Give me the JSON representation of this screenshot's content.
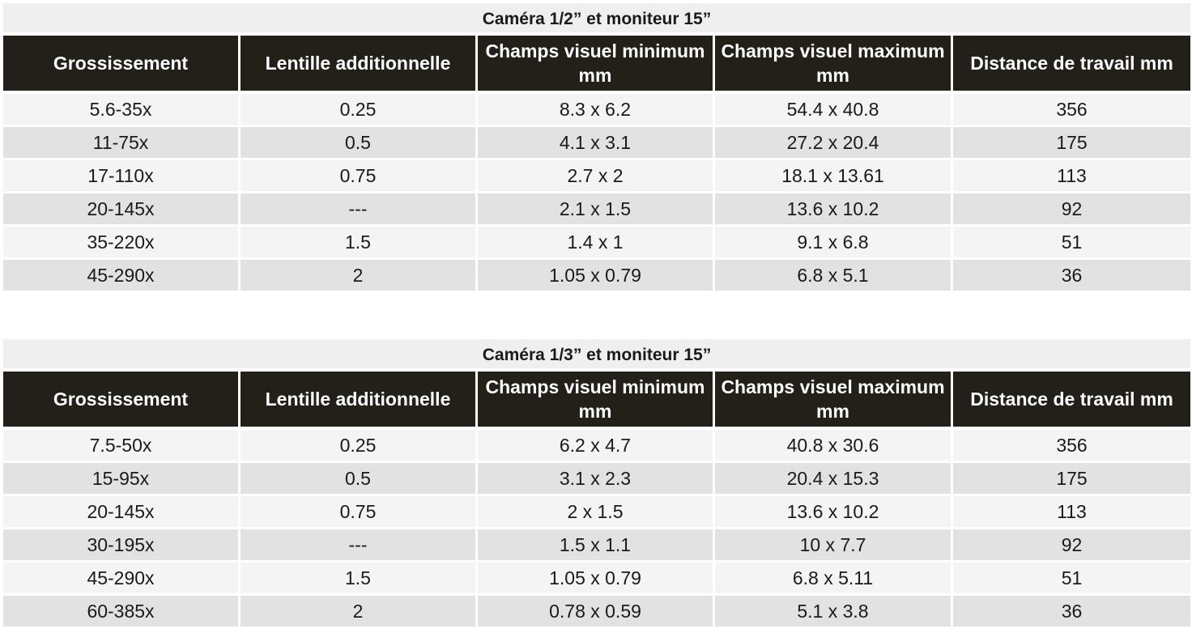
{
  "tables": [
    {
      "title": "Caméra 1/2” et moniteur 15”",
      "headers": [
        "Grossissement",
        "Lentille additionnelle",
        "Champs visuel minimum mm",
        "Champs visuel maximum mm",
        "Distance de travail mm"
      ],
      "rows": [
        [
          "5.6-35x",
          "0.25",
          "8.3 x 6.2",
          "54.4 x 40.8",
          "356"
        ],
        [
          "11-75x",
          "0.5",
          "4.1 x 3.1",
          "27.2 x 20.4",
          "175"
        ],
        [
          "17-110x",
          "0.75",
          "2.7 x 2",
          "18.1 x 13.61",
          "113"
        ],
        [
          "20-145x",
          "---",
          "2.1 x 1.5",
          "13.6 x 10.2",
          "92"
        ],
        [
          "35-220x",
          "1.5",
          "1.4 x 1",
          "9.1 x 6.8",
          "51"
        ],
        [
          "45-290x",
          "2",
          "1.05 x 0.79",
          "6.8 x 5.1",
          "36"
        ]
      ]
    },
    {
      "title": "Caméra 1/3” et moniteur 15”",
      "headers": [
        "Grossissement",
        "Lentille additionnelle",
        "Champs visuel minimum mm",
        "Champs visuel maximum mm",
        "Distance de travail mm"
      ],
      "rows": [
        [
          "7.5-50x",
          "0.25",
          "6.2 x 4.7",
          "40.8 x 30.6",
          "356"
        ],
        [
          "15-95x",
          "0.5",
          "3.1 x 2.3",
          "20.4 x 15.3",
          "175"
        ],
        [
          "20-145x",
          "0.75",
          "2 x 1.5",
          "13.6 x 10.2",
          "113"
        ],
        [
          "30-195x",
          "---",
          "1.5 x 1.1",
          "10 x 7.7",
          "92"
        ],
        [
          "45-290x",
          "1.5",
          "1.05 x 0.79",
          "6.8 x 5.11",
          "51"
        ],
        [
          "60-385x",
          "2",
          "0.78 x 0.59",
          "5.1 x 3.8",
          "36"
        ]
      ]
    }
  ]
}
